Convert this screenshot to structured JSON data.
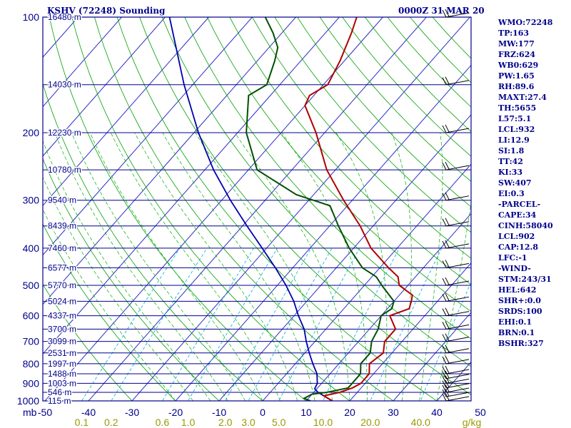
{
  "header": {
    "station": "KSHV (72248) Sounding",
    "time": "0000Z 31 MAR 20"
  },
  "stats": [
    "WMO:72248",
    "TP:163",
    "MW:177",
    "FRZ:624",
    "WB0:629",
    "PW:1.65",
    "RH:89.6",
    "MAXT:27.4",
    "TH:5655",
    "L57:5.1",
    "LCL:932",
    "LI:12.9",
    "SI:1.8",
    "TT:42",
    "KI:33",
    "SW:407",
    "EI:0.3",
    "-PARCEL-",
    "CAPE:34",
    "CINH:58040",
    "LCL:902",
    "CAP:12.8",
    "LFC:-1",
    "-WIND-",
    "STM:243/31",
    "HEL:642",
    "SHR+:0.0",
    "SRDS:100",
    "EHI:0.1",
    "BRN:0.1",
    "BSHR:327"
  ],
  "colors": {
    "frame": "#00008b",
    "isobar": "#00008b",
    "isotherm": "#2d2dc8",
    "dry_adiabat": "#00a000",
    "moist_adiabat": "#00b000",
    "mixing_ratio": "#00aadd",
    "temperature": "#b00000",
    "dewpoint": "#005000",
    "parcel": "#0000aa",
    "wind_barb": "#000000",
    "mixing_label": "#999900"
  },
  "chart_data": {
    "type": "skew-t",
    "pressure_ticks": [
      "100",
      "200",
      "300",
      "400",
      "500",
      "600",
      "700",
      "800",
      "900",
      "1000"
    ],
    "temperature_ticks": [
      "-50",
      "-40",
      "-30",
      "-20",
      "-10",
      "0",
      "10",
      "20",
      "30",
      "40",
      "50"
    ],
    "axis_unit_left": "mb",
    "mixing_ratio_ticks": [
      "0.1",
      "0.2",
      "0.6",
      "1.0",
      "2.0",
      "3.0",
      "5.0",
      "10.0",
      "20.0",
      "40.0"
    ],
    "mixing_ratio_unit": "g/kg",
    "height_labels": [
      {
        "p": 100,
        "label": "16480 m"
      },
      {
        "p": 150,
        "label": "14030 m"
      },
      {
        "p": 200,
        "label": "12230 m"
      },
      {
        "p": 250,
        "label": "10780 m"
      },
      {
        "p": 300,
        "label": "9540 m"
      },
      {
        "p": 350,
        "label": "8439 m"
      },
      {
        "p": 400,
        "label": "7460 m"
      },
      {
        "p": 450,
        "label": "6577 m"
      },
      {
        "p": 500,
        "label": "5770 m"
      },
      {
        "p": 550,
        "label": "5024 m"
      },
      {
        "p": 600,
        "label": "4337 m"
      },
      {
        "p": 650,
        "label": "3700 m"
      },
      {
        "p": 700,
        "label": "3099 m"
      },
      {
        "p": 750,
        "label": "2531 m"
      },
      {
        "p": 800,
        "label": "1997 m"
      },
      {
        "p": 850,
        "label": "1488 m"
      },
      {
        "p": 900,
        "label": "1003 m"
      },
      {
        "p": 950,
        "label": "546 m"
      },
      {
        "p": 1000,
        "label": "115 m"
      }
    ],
    "temperature": [
      {
        "p": 1000,
        "t": 16
      },
      {
        "p": 970,
        "t": 13
      },
      {
        "p": 950,
        "t": 16
      },
      {
        "p": 925,
        "t": 18
      },
      {
        "p": 900,
        "t": 19
      },
      {
        "p": 880,
        "t": 19
      },
      {
        "p": 850,
        "t": 19
      },
      {
        "p": 800,
        "t": 17
      },
      {
        "p": 750,
        "t": 18
      },
      {
        "p": 700,
        "t": 16
      },
      {
        "p": 650,
        "t": 16
      },
      {
        "p": 600,
        "t": 12
      },
      {
        "p": 575,
        "t": 15
      },
      {
        "p": 550,
        "t": 14
      },
      {
        "p": 530,
        "t": 13
      },
      {
        "p": 500,
        "t": 8
      },
      {
        "p": 475,
        "t": 6
      },
      {
        "p": 450,
        "t": 2
      },
      {
        "p": 400,
        "t": -6
      },
      {
        "p": 350,
        "t": -13
      },
      {
        "p": 300,
        "t": -22
      },
      {
        "p": 250,
        "t": -32
      },
      {
        "p": 200,
        "t": -42
      },
      {
        "p": 170,
        "t": -50
      },
      {
        "p": 160,
        "t": -51
      },
      {
        "p": 150,
        "t": -49
      },
      {
        "p": 130,
        "t": -51
      },
      {
        "p": 110,
        "t": -54
      },
      {
        "p": 100,
        "t": -56
      }
    ],
    "dewpoint": [
      {
        "p": 1000,
        "t": 11
      },
      {
        "p": 985,
        "t": 9
      },
      {
        "p": 960,
        "t": 10
      },
      {
        "p": 950,
        "t": 13
      },
      {
        "p": 925,
        "t": 17
      },
      {
        "p": 900,
        "t": 17
      },
      {
        "p": 850,
        "t": 17
      },
      {
        "p": 800,
        "t": 15
      },
      {
        "p": 750,
        "t": 15
      },
      {
        "p": 700,
        "t": 13
      },
      {
        "p": 650,
        "t": 12
      },
      {
        "p": 600,
        "t": 10
      },
      {
        "p": 575,
        "t": 11
      },
      {
        "p": 550,
        "t": 10
      },
      {
        "p": 500,
        "t": 4
      },
      {
        "p": 475,
        "t": 1
      },
      {
        "p": 450,
        "t": -4
      },
      {
        "p": 400,
        "t": -11
      },
      {
        "p": 350,
        "t": -18
      },
      {
        "p": 310,
        "t": -24
      },
      {
        "p": 290,
        "t": -34
      },
      {
        "p": 250,
        "t": -48
      },
      {
        "p": 200,
        "t": -58
      },
      {
        "p": 160,
        "t": -65
      },
      {
        "p": 150,
        "t": -63
      },
      {
        "p": 130,
        "t": -66
      },
      {
        "p": 120,
        "t": -68
      },
      {
        "p": 110,
        "t": -72
      },
      {
        "p": 100,
        "t": -77
      }
    ],
    "parcel": [
      {
        "p": 1000,
        "t": 16
      },
      {
        "p": 950,
        "t": 11
      },
      {
        "p": 930,
        "t": 9.5
      },
      {
        "p": 900,
        "t": 9
      },
      {
        "p": 850,
        "t": 7
      },
      {
        "p": 800,
        "t": 4
      },
      {
        "p": 750,
        "t": 1
      },
      {
        "p": 700,
        "t": -2
      },
      {
        "p": 650,
        "t": -5
      },
      {
        "p": 600,
        "t": -9
      },
      {
        "p": 550,
        "t": -13
      },
      {
        "p": 500,
        "t": -18
      },
      {
        "p": 450,
        "t": -24
      },
      {
        "p": 400,
        "t": -31
      },
      {
        "p": 350,
        "t": -39
      },
      {
        "p": 300,
        "t": -48
      },
      {
        "p": 250,
        "t": -58
      },
      {
        "p": 200,
        "t": -69
      },
      {
        "p": 150,
        "t": -82
      },
      {
        "p": 100,
        "t": -99
      }
    ],
    "wind_barb_levels": [
      1000,
      975,
      950,
      925,
      900,
      875,
      850,
      800,
      750,
      700,
      650,
      600,
      550,
      500,
      450,
      400,
      350,
      300,
      250,
      200,
      150,
      100
    ],
    "grid": true
  }
}
